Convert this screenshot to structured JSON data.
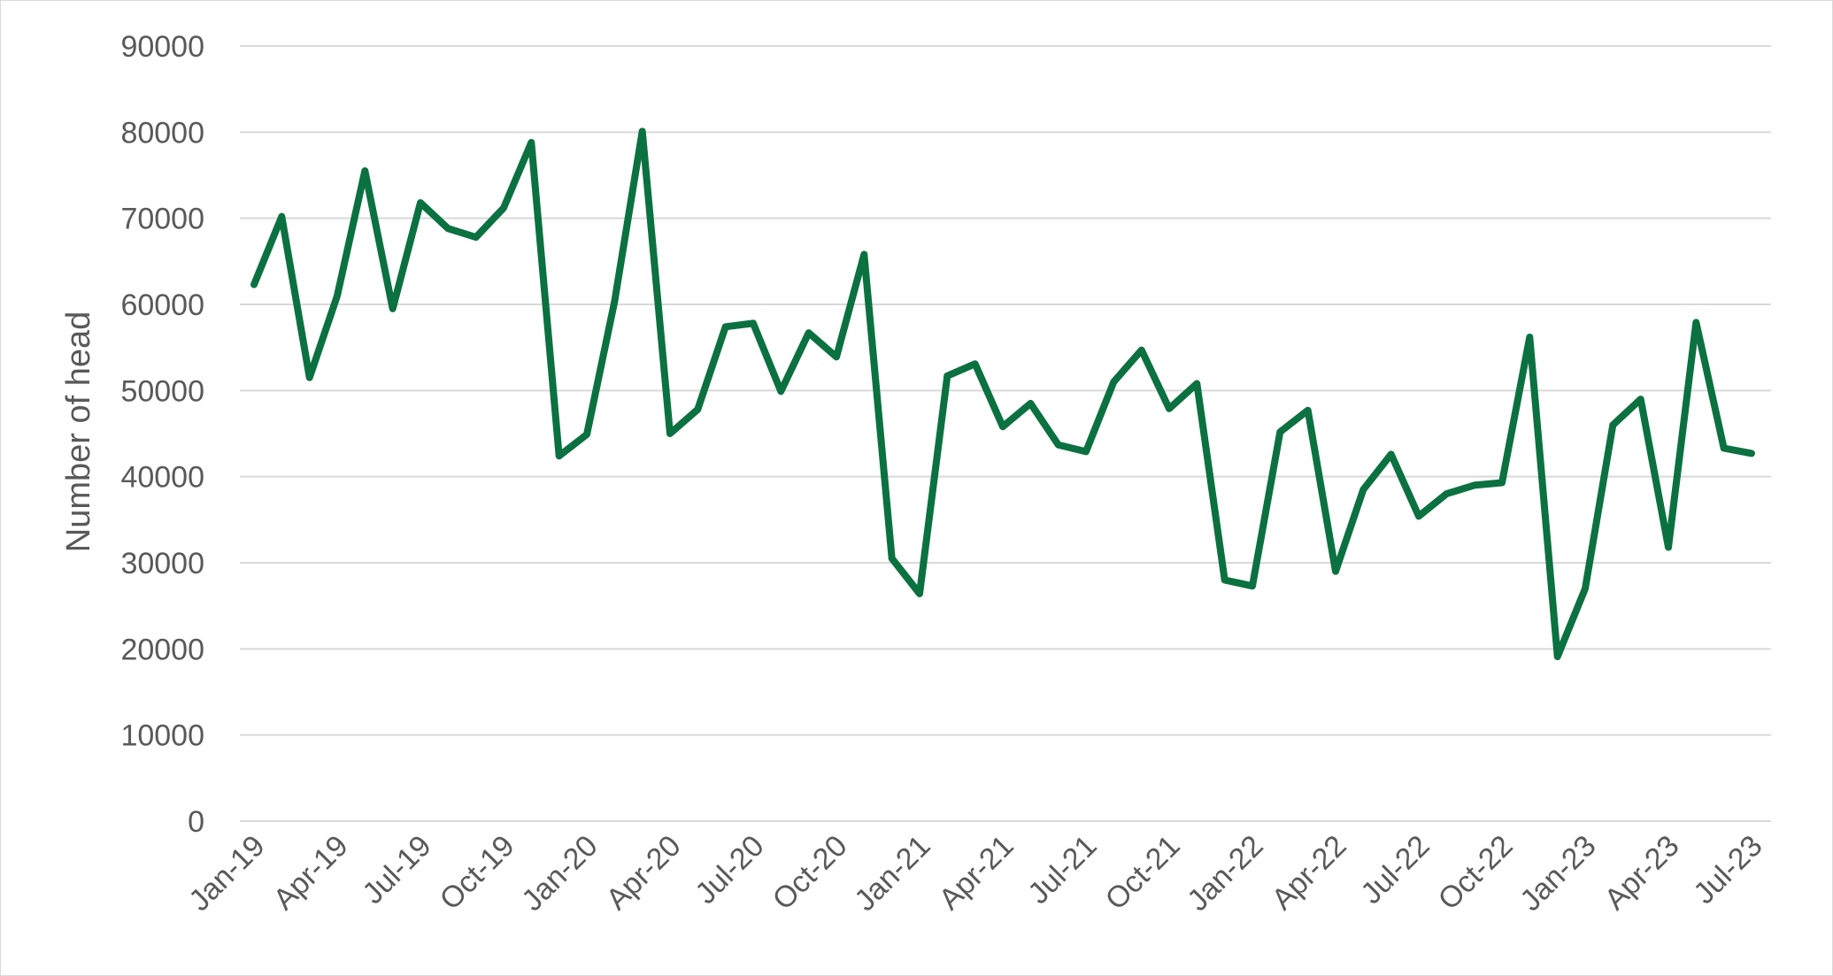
{
  "chart_data": {
    "type": "line",
    "title": "",
    "xlabel": "",
    "ylabel": "Number of head",
    "ylim": [
      0,
      90000
    ],
    "y_ticks": [
      0,
      10000,
      20000,
      30000,
      40000,
      50000,
      60000,
      70000,
      80000,
      90000
    ],
    "x_tick_labels": [
      "Jan-19",
      "Apr-19",
      "Jul-19",
      "Oct-19",
      "Jan-20",
      "Apr-20",
      "Jul-20",
      "Oct-20",
      "Jan-21",
      "Apr-21",
      "Jul-21",
      "Oct-21",
      "Jan-22",
      "Apr-22",
      "Jul-22",
      "Oct-22",
      "Jan-23",
      "Apr-23",
      "Jul-23"
    ],
    "grid": "horizontal",
    "legend": "none",
    "series_color": "#0b7140",
    "gridline_color": "#d9d9d9",
    "x": [
      "Jan-19",
      "Feb-19",
      "Mar-19",
      "Apr-19",
      "May-19",
      "Jun-19",
      "Jul-19",
      "Aug-19",
      "Sep-19",
      "Oct-19",
      "Nov-19",
      "Dec-19",
      "Jan-20",
      "Feb-20",
      "Mar-20",
      "Apr-20",
      "May-20",
      "Jun-20",
      "Jul-20",
      "Aug-20",
      "Sep-20",
      "Oct-20",
      "Nov-20",
      "Dec-20",
      "Jan-21",
      "Feb-21",
      "Mar-21",
      "Apr-21",
      "May-21",
      "Jun-21",
      "Jul-21",
      "Aug-21",
      "Sep-21",
      "Oct-21",
      "Nov-21",
      "Dec-21",
      "Jan-22",
      "Feb-22",
      "Mar-22",
      "Apr-22",
      "May-22",
      "Jun-22",
      "Jul-22",
      "Aug-22",
      "Sep-22",
      "Oct-22",
      "Nov-22",
      "Dec-22",
      "Jan-23",
      "Feb-23",
      "Mar-23",
      "Apr-23",
      "May-23",
      "Jun-23",
      "Jul-23"
    ],
    "series": [
      {
        "values": [
          62300,
          70200,
          51500,
          61000,
          75500,
          59500,
          71800,
          68800,
          67800,
          71200,
          78800,
          42400,
          44900,
          60300,
          80100,
          45000,
          47800,
          57400,
          57800,
          49900,
          56700,
          53900,
          65800,
          30500,
          26400,
          51700,
          53100,
          45800,
          48500,
          43700,
          42900,
          51000,
          54700,
          47900,
          50800,
          28000,
          27300,
          45200,
          47700,
          29000,
          38500,
          42600,
          35400,
          38000,
          39000,
          39300,
          56200,
          19100,
          27000,
          46000,
          49000,
          31800,
          57900,
          43300,
          42700
        ]
      }
    ]
  }
}
